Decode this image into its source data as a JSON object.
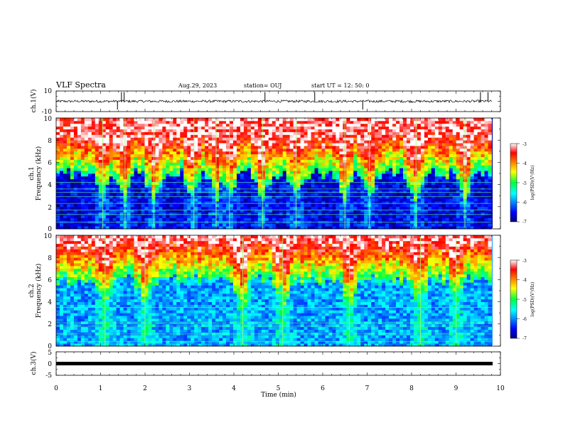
{
  "header": {
    "title": "VLF Spectra",
    "date": "Aug.29, 2023",
    "station": "station= OUJ",
    "start": "start  UT =   12: 50: 0"
  },
  "chart_data": [
    {
      "type": "line",
      "name": "waveform-ch1",
      "ylabel": "ch.1(V)",
      "ylim": [
        -10,
        10
      ],
      "yticks": [
        "10",
        "-10"
      ],
      "xlim": [
        0,
        10
      ],
      "baseline": 0,
      "spikes_min": [
        1.38,
        1.47,
        1.53,
        4.7,
        5.82,
        6.9,
        9.55,
        9.72
      ]
    },
    {
      "type": "heatmap",
      "name": "spectrogram-ch1",
      "ylabel_line1": "ch.1",
      "ylabel_line2": "Frequency (kHz)",
      "ylim": [
        0,
        10
      ],
      "yticks": [
        "0",
        "2",
        "4",
        "6",
        "8",
        "10"
      ],
      "xlim": [
        0,
        9.8
      ],
      "colorbar": {
        "label": "log(PSD)(V²/Hz)",
        "range": [
          -7,
          -3
        ],
        "ticks": [
          "-3",
          "-4",
          "-5",
          "-6",
          "-7"
        ]
      },
      "base_level": -6.6,
      "noise_edge_khz": 5.0,
      "line_freqs_khz": [
        0.6,
        1.3,
        1.7,
        2.3,
        2.9,
        3.3,
        3.6,
        4.2
      ],
      "bursts_min": [
        1.05,
        1.55,
        2.2,
        3.1,
        3.6,
        3.9,
        4.65,
        5.4,
        6.5,
        7.05,
        8.1,
        9.2
      ]
    },
    {
      "type": "heatmap",
      "name": "spectrogram-ch2",
      "ylabel_line1": "ch.2",
      "ylabel_line2": "Frequency (kHz)",
      "ylim": [
        0,
        10
      ],
      "yticks": [
        "0",
        "2",
        "4",
        "6",
        "8",
        "10"
      ],
      "xlim": [
        0,
        9.8
      ],
      "colorbar": {
        "label": "log(PSD)(V²/Hz)",
        "range": [
          -7,
          -3
        ],
        "ticks": [
          "-3",
          "-4",
          "-5",
          "-6",
          "-7"
        ]
      },
      "base_level": -5.9,
      "noise_edge_khz": 6.0,
      "line_freqs_khz": [
        0.4,
        1.1,
        1.8,
        2.1,
        3.5
      ],
      "bursts_min": [
        1.1,
        2.0,
        4.2,
        5.1,
        6.6,
        8.2,
        9.0
      ]
    },
    {
      "type": "line",
      "name": "waveform-ch3",
      "ylabel": "ch.3(V)",
      "ylim": [
        -5,
        5
      ],
      "yticks": [
        "5",
        "0",
        "-5"
      ],
      "xlim": [
        0,
        10
      ],
      "baseline": 0
    }
  ],
  "xaxis": {
    "label": "Time (min)",
    "ticks": [
      "0",
      "1",
      "2",
      "3",
      "4",
      "5",
      "6",
      "7",
      "8",
      "9",
      "10"
    ]
  }
}
